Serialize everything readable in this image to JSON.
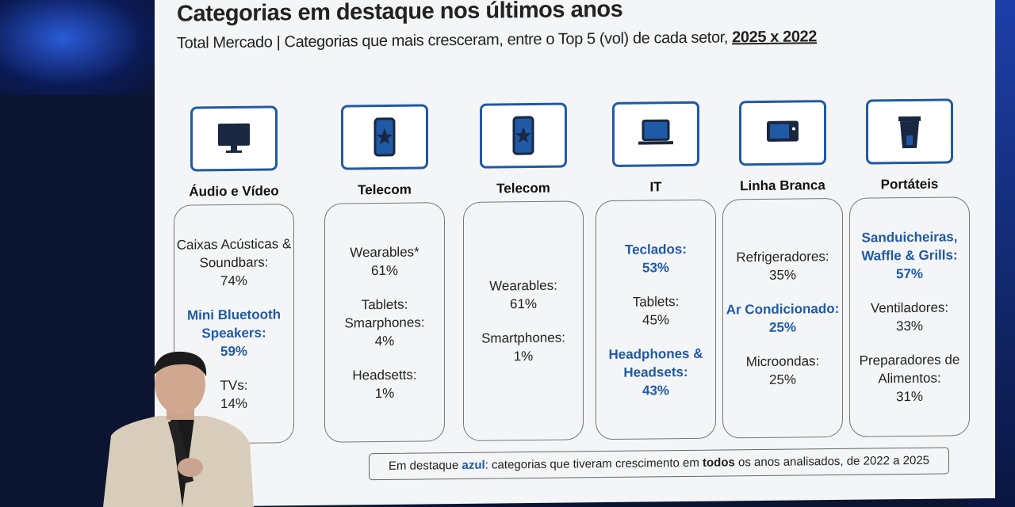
{
  "slide": {
    "title": "Categorias em destaque nos últimos anos",
    "subtitle_main": "Total Mercado | Categorias que mais cresceram, entre o Top 5 (vol) de cada setor, ",
    "subtitle_period": "2025 x 2022",
    "highlight_color": "#1f5aa6",
    "columns": [
      {
        "header": "Áudio e Vídeo",
        "icon": "monitor-icon",
        "entries": [
          {
            "text": "Caixas Acústicas & Soundbars:",
            "value": "74%",
            "highlight": false
          },
          {
            "text": "Mini Bluetooth Speakers:",
            "value": "59%",
            "highlight": true
          },
          {
            "text": "TVs:",
            "value": "14%",
            "highlight": false
          }
        ]
      },
      {
        "header": "Telecom",
        "icon": "smartphone-icon",
        "entries": [
          {
            "text": "Wearables*",
            "value": "61%",
            "highlight": false
          },
          {
            "text": "Tablets: Smarphones:",
            "value": "4%",
            "highlight": false
          },
          {
            "text": "Headsetts:",
            "value": "1%",
            "highlight": false
          }
        ]
      },
      {
        "header": "Telecom",
        "icon": "smartphone-icon",
        "entries": [
          {
            "text": "Wearables:",
            "value": "61%",
            "highlight": false
          },
          {
            "text": "Smartphones:",
            "value": "1%",
            "highlight": false
          }
        ]
      },
      {
        "header": "IT",
        "icon": "laptop-icon",
        "entries": [
          {
            "text": "Teclados:",
            "value": "53%",
            "highlight": true
          },
          {
            "text": "Tablets:",
            "value": "45%",
            "highlight": false
          },
          {
            "text": "Headphones & Headsets:",
            "value": "43%",
            "highlight": true
          }
        ]
      },
      {
        "header": "Linha Branca",
        "icon": "microwave-icon",
        "entries": [
          {
            "text": "Refrigeradores:",
            "value": "35%",
            "highlight": false
          },
          {
            "text": "Ar Condicionado:",
            "value": "25%",
            "highlight": true
          },
          {
            "text": "Microondas:",
            "value": "25%",
            "highlight": false
          }
        ]
      },
      {
        "header": "Portáteis",
        "icon": "blender-icon",
        "entries": [
          {
            "text": "Sanduicheiras, Waffle & Grills:",
            "value": "57%",
            "highlight": true
          },
          {
            "text": "Ventiladores:",
            "value": "33%",
            "highlight": false
          },
          {
            "text": "Preparadores de Alimentos:",
            "value": "31%",
            "highlight": false
          }
        ]
      }
    ],
    "note": {
      "before": "Em destaque ",
      "azul": "azul",
      "middle": ": categorias que tiveram crescimento em ",
      "todos": "todos",
      "after": " os anos analisados, de 2022 a 2025"
    }
  }
}
